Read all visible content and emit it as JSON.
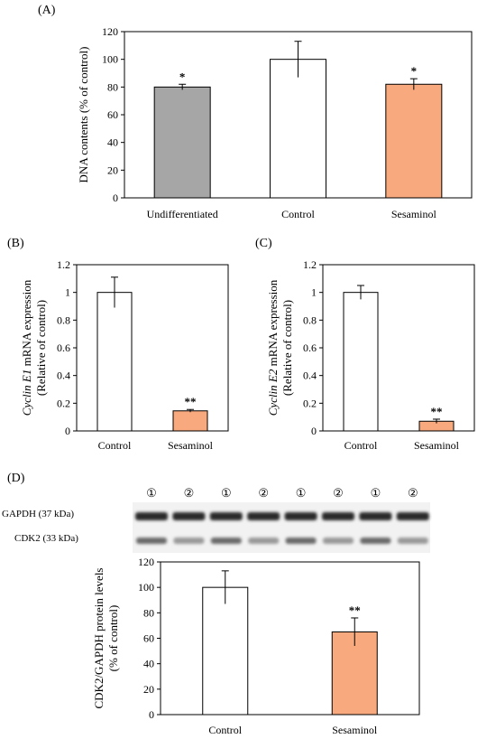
{
  "panels": {
    "A": "(A)",
    "B": "(B)",
    "C": "(C)",
    "D": "(D)"
  },
  "blot": {
    "lanes": [
      "①",
      "②",
      "①",
      "②",
      "①",
      "②",
      "①",
      "②"
    ],
    "gapdh_label": "GAPDH (37 kDa)",
    "cdk2_label": "CDK2 (33 kDa)"
  },
  "colors": {
    "undifferentiated": "#a6a6a6",
    "control": "#ffffff",
    "sesaminol": "#f8a97d"
  },
  "chart_data": [
    {
      "id": "A",
      "type": "bar",
      "categories": [
        "Undifferentiated",
        "Control",
        "Sesaminol"
      ],
      "values": [
        80,
        100,
        82
      ],
      "errors": [
        2,
        13,
        4
      ],
      "annotations": [
        "*",
        "",
        "*"
      ],
      "ylabel": "DNA contents (% of control)",
      "ylim": [
        0,
        120
      ],
      "yticks": [
        0,
        20,
        40,
        60,
        80,
        100,
        120
      ]
    },
    {
      "id": "B",
      "type": "bar",
      "categories": [
        "Control",
        "Sesaminol"
      ],
      "values": [
        1.0,
        0.145
      ],
      "errors": [
        0.11,
        0.01
      ],
      "annotations": [
        "",
        "**"
      ],
      "ylabel_italic": "Cyclin E1",
      "ylabel_rest": " mRNA expression",
      "ylabel2": "(Relative of control)",
      "ylim": [
        0,
        1.2
      ],
      "yticks": [
        0,
        0.2,
        0.4,
        0.6,
        0.8,
        1,
        1.2
      ]
    },
    {
      "id": "C",
      "type": "bar",
      "categories": [
        "Control",
        "Sesaminol"
      ],
      "values": [
        1.0,
        0.07
      ],
      "errors": [
        0.05,
        0.015
      ],
      "annotations": [
        "",
        "**"
      ],
      "ylabel_italic": "Cyclin E2",
      "ylabel_rest": " mRNA expression",
      "ylabel2": "(Relative of control)",
      "ylim": [
        0,
        1.2
      ],
      "yticks": [
        0,
        0.2,
        0.4,
        0.6,
        0.8,
        1,
        1.2
      ]
    },
    {
      "id": "D",
      "type": "bar",
      "categories": [
        "Control",
        "Sesaminol"
      ],
      "values": [
        100,
        65
      ],
      "errors": [
        13,
        11
      ],
      "annotations": [
        "",
        "**"
      ],
      "ylabel": "CDK2/GAPDH protein levels",
      "ylabel2": "(% of control)",
      "ylim": [
        0,
        120
      ],
      "yticks": [
        0,
        20,
        40,
        60,
        80,
        100,
        120
      ]
    }
  ]
}
